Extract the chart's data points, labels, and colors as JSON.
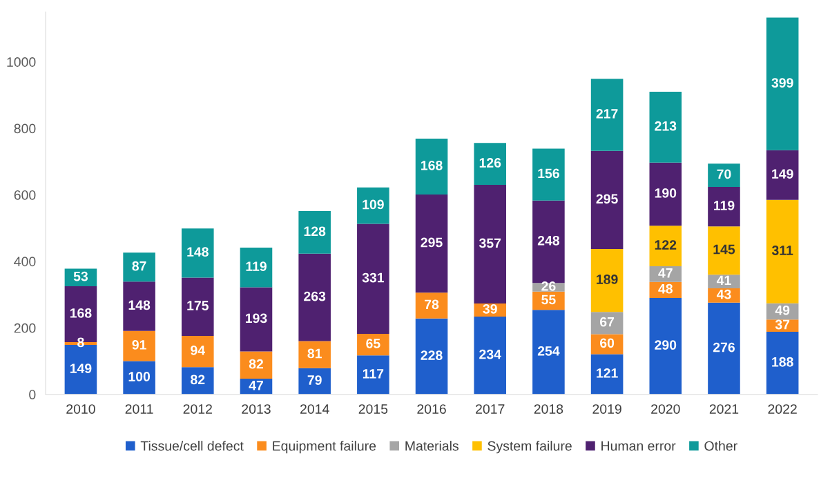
{
  "chart_data": {
    "type": "bar",
    "stacked": true,
    "categories": [
      "2010",
      "2011",
      "2012",
      "2013",
      "2014",
      "2015",
      "2016",
      "2017",
      "2018",
      "2019",
      "2020",
      "2021",
      "2022"
    ],
    "series": [
      {
        "name": "Tissue/cell defect",
        "color": "#1f5fcc",
        "values": [
          149,
          100,
          82,
          47,
          79,
          117,
          228,
          234,
          254,
          121,
          290,
          276,
          188
        ]
      },
      {
        "name": "Equipment failure",
        "color": "#fb8c1d",
        "values": [
          8,
          91,
          94,
          82,
          81,
          65,
          78,
          39,
          55,
          60,
          48,
          43,
          37
        ]
      },
      {
        "name": "Materials",
        "color": "#a5a5a5",
        "values": [
          null,
          null,
          null,
          null,
          null,
          null,
          null,
          null,
          26,
          67,
          47,
          41,
          49
        ]
      },
      {
        "name": "System failure",
        "color": "#ffc000",
        "values": [
          null,
          null,
          null,
          null,
          null,
          null,
          null,
          null,
          null,
          189,
          122,
          145,
          311
        ]
      },
      {
        "name": "Human error",
        "color": "#4f2170",
        "values": [
          168,
          148,
          175,
          193,
          263,
          331,
          295,
          357,
          248,
          295,
          190,
          119,
          149
        ]
      },
      {
        "name": "Other",
        "color": "#0e9a9a",
        "values": [
          53,
          87,
          148,
          119,
          128,
          109,
          168,
          126,
          156,
          217,
          213,
          70,
          399
        ]
      }
    ],
    "ylim": [
      0,
      1150
    ],
    "yticks": [
      0,
      200,
      400,
      600,
      800,
      1000
    ],
    "grid": false,
    "legend": "bottom",
    "data_labels": true
  }
}
